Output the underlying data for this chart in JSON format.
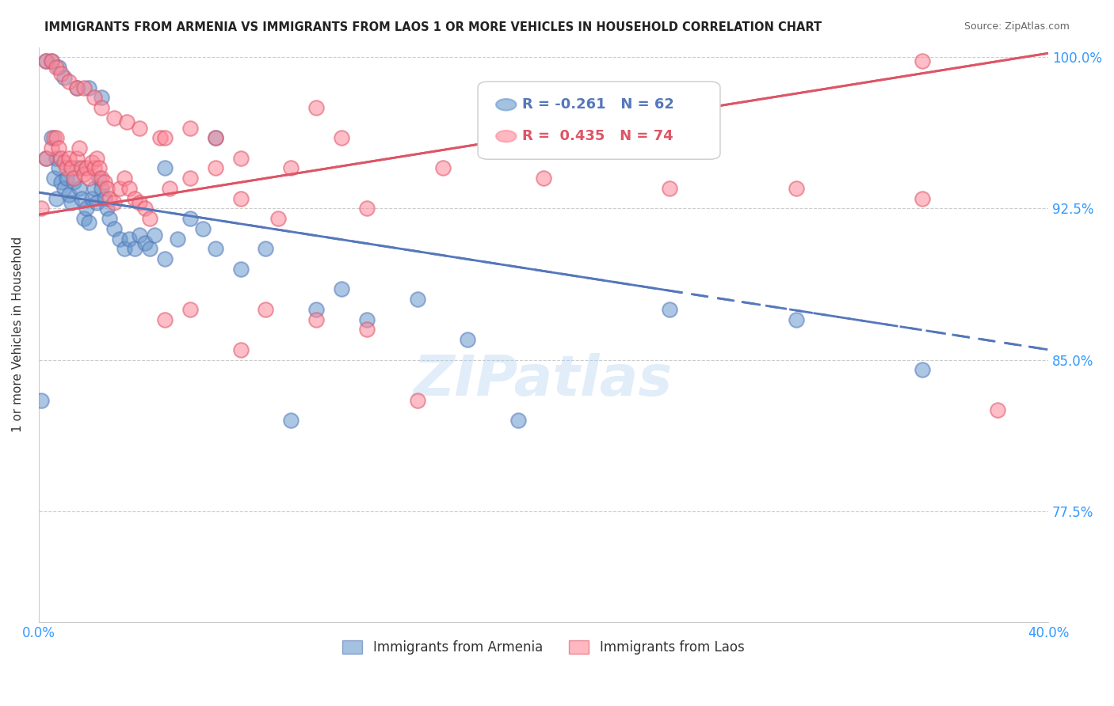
{
  "title": "IMMIGRANTS FROM ARMENIA VS IMMIGRANTS FROM LAOS 1 OR MORE VEHICLES IN HOUSEHOLD CORRELATION CHART",
  "source": "Source: ZipAtlas.com",
  "ylabel": "1 or more Vehicles in Household",
  "xlabel": "",
  "xlim": [
    0.0,
    0.4
  ],
  "ylim": [
    0.72,
    1.005
  ],
  "yticks": [
    0.775,
    0.85,
    0.925,
    1.0
  ],
  "ytick_labels": [
    "77.5%",
    "85.0%",
    "92.5%",
    "100.0%"
  ],
  "xticks": [
    0.0,
    0.05,
    0.1,
    0.15,
    0.2,
    0.25,
    0.3,
    0.35,
    0.4
  ],
  "xtick_labels": [
    "0.0%",
    "",
    "",
    "",
    "",
    "",
    "",
    "",
    "40.0%"
  ],
  "armenia_R": -0.261,
  "armenia_N": 62,
  "laos_R": 0.435,
  "laos_N": 74,
  "armenia_color": "#6699cc",
  "laos_color": "#ff8899",
  "armenia_line_color": "#5577bb",
  "laos_line_color": "#dd5566",
  "title_fontsize": 11,
  "source_fontsize": 9,
  "tick_color": "#3399ff",
  "legend_fontsize": 13,
  "armenia_x": [
    0.001,
    0.003,
    0.005,
    0.006,
    0.007,
    0.007,
    0.008,
    0.009,
    0.01,
    0.011,
    0.012,
    0.013,
    0.014,
    0.015,
    0.016,
    0.017,
    0.018,
    0.019,
    0.02,
    0.021,
    0.022,
    0.023,
    0.024,
    0.025,
    0.026,
    0.027,
    0.028,
    0.03,
    0.032,
    0.034,
    0.036,
    0.038,
    0.04,
    0.042,
    0.044,
    0.046,
    0.05,
    0.055,
    0.06,
    0.065,
    0.07,
    0.08,
    0.09,
    0.1,
    0.11,
    0.13,
    0.15,
    0.17,
    0.19,
    0.003,
    0.005,
    0.008,
    0.01,
    0.015,
    0.02,
    0.025,
    0.05,
    0.07,
    0.12,
    0.25,
    0.3,
    0.35
  ],
  "armenia_y": [
    0.83,
    0.95,
    0.96,
    0.94,
    0.93,
    0.95,
    0.945,
    0.938,
    0.935,
    0.94,
    0.932,
    0.928,
    0.938,
    0.945,
    0.935,
    0.93,
    0.92,
    0.925,
    0.918,
    0.93,
    0.935,
    0.928,
    0.94,
    0.935,
    0.93,
    0.925,
    0.92,
    0.915,
    0.91,
    0.905,
    0.91,
    0.905,
    0.912,
    0.908,
    0.905,
    0.912,
    0.9,
    0.91,
    0.92,
    0.915,
    0.905,
    0.895,
    0.905,
    0.82,
    0.875,
    0.87,
    0.88,
    0.86,
    0.82,
    0.998,
    0.998,
    0.995,
    0.99,
    0.985,
    0.985,
    0.98,
    0.945,
    0.96,
    0.885,
    0.875,
    0.87,
    0.845
  ],
  "laos_x": [
    0.001,
    0.003,
    0.005,
    0.006,
    0.007,
    0.008,
    0.009,
    0.01,
    0.011,
    0.012,
    0.013,
    0.014,
    0.015,
    0.016,
    0.017,
    0.018,
    0.019,
    0.02,
    0.021,
    0.022,
    0.023,
    0.024,
    0.025,
    0.026,
    0.027,
    0.028,
    0.03,
    0.032,
    0.034,
    0.036,
    0.038,
    0.04,
    0.042,
    0.044,
    0.048,
    0.052,
    0.06,
    0.07,
    0.08,
    0.095,
    0.11,
    0.13,
    0.15,
    0.003,
    0.005,
    0.007,
    0.009,
    0.012,
    0.015,
    0.018,
    0.022,
    0.025,
    0.03,
    0.035,
    0.04,
    0.05,
    0.06,
    0.07,
    0.08,
    0.1,
    0.12,
    0.16,
    0.2,
    0.25,
    0.3,
    0.35,
    0.38,
    0.05,
    0.06,
    0.08,
    0.09,
    0.11,
    0.13,
    0.35
  ],
  "laos_y": [
    0.925,
    0.95,
    0.955,
    0.96,
    0.96,
    0.955,
    0.95,
    0.948,
    0.945,
    0.95,
    0.945,
    0.94,
    0.95,
    0.955,
    0.945,
    0.942,
    0.945,
    0.94,
    0.948,
    0.945,
    0.95,
    0.945,
    0.94,
    0.938,
    0.935,
    0.93,
    0.928,
    0.935,
    0.94,
    0.935,
    0.93,
    0.928,
    0.925,
    0.92,
    0.96,
    0.935,
    0.94,
    0.945,
    0.93,
    0.92,
    0.975,
    0.925,
    0.83,
    0.998,
    0.998,
    0.995,
    0.992,
    0.988,
    0.985,
    0.985,
    0.98,
    0.975,
    0.97,
    0.968,
    0.965,
    0.96,
    0.965,
    0.96,
    0.95,
    0.945,
    0.96,
    0.945,
    0.94,
    0.935,
    0.935,
    0.93,
    0.825,
    0.87,
    0.875,
    0.855,
    0.875,
    0.87,
    0.865,
    0.998
  ]
}
